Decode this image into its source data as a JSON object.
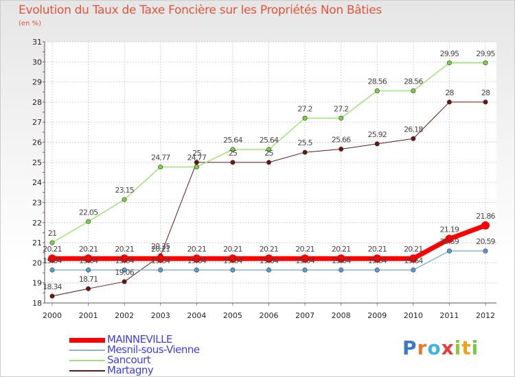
{
  "chart_data": {
    "type": "line",
    "title": "Evolution du Taux de Taxe Foncière sur les Propriétés Non Bâties",
    "unit_label": "(en %)",
    "x": [
      "2000",
      "2001",
      "2002",
      "2003",
      "2004",
      "2005",
      "2006",
      "2007",
      "2008",
      "2009",
      "2010",
      "2011",
      "2012"
    ],
    "ylim": [
      18,
      31
    ],
    "yticks": [
      18,
      19,
      20,
      21,
      22,
      23,
      24,
      25,
      26,
      27,
      28,
      29,
      30,
      31
    ],
    "grid": true,
    "legend_position": "bottom-left",
    "series": [
      {
        "name": "Martagny",
        "color": "#5a1a1a",
        "marker": "#6b1414",
        "width": 1,
        "values": [
          18.34,
          18.71,
          19.06,
          20.35,
          25,
          25,
          25,
          25.5,
          25.66,
          25.92,
          26.18,
          28,
          28
        ],
        "labels": [
          "18.34",
          "18.71",
          "19.06",
          "20.35",
          "25",
          "25",
          "25",
          "25.5",
          "25.66",
          "25.92",
          "26.18",
          "28",
          "28"
        ]
      },
      {
        "name": "Sancourt",
        "color": "#a3e07a",
        "marker": "#7ed040",
        "width": 1.5,
        "values": [
          21,
          22.05,
          23.15,
          24.77,
          24.77,
          25.64,
          25.64,
          27.2,
          27.2,
          28.56,
          28.56,
          29.95,
          29.95
        ],
        "labels": [
          "21",
          "22.05",
          "23.15",
          "24.77",
          "24.77",
          "25.64",
          "25.64",
          "27.2",
          "27.2",
          "28.56",
          "28.56",
          "29.95",
          "29.95"
        ]
      },
      {
        "name": "Mesnil-sous-Vienne",
        "color": "#8ab4d6",
        "marker": "#5a9bd0",
        "width": 1.5,
        "values": [
          19.64,
          19.64,
          19.64,
          19.64,
          19.64,
          19.64,
          19.64,
          19.64,
          19.64,
          19.64,
          19.64,
          20.59,
          20.59
        ],
        "labels": [
          "19.64",
          "19.64",
          "19.64",
          "19.64",
          "19.64",
          "19.64",
          "19.64",
          "19.64",
          "19.64",
          "19.64",
          "19.64",
          "20.59",
          "20.59"
        ]
      },
      {
        "name": "MAINNEVILLE",
        "color": "#ff0000",
        "marker": "#ff0000",
        "width": 7,
        "values": [
          20.21,
          20.21,
          20.21,
          20.21,
          20.21,
          20.21,
          20.21,
          20.21,
          20.21,
          20.21,
          20.21,
          21.19,
          21.86
        ],
        "labels": [
          "20.21",
          "20.21",
          "20.21",
          "20.21",
          "20.21",
          "20.21",
          "20.21",
          "20.21",
          "20.21",
          "20.21",
          "20.21",
          "21.19",
          "21.86"
        ]
      }
    ],
    "legend": [
      {
        "name": "MAINNEVILLE",
        "color": "#ff0000",
        "thickness": 7
      },
      {
        "name": "Mesnil-sous-Vienne",
        "color": "#8ab4d6",
        "thickness": 2
      },
      {
        "name": "Sancourt",
        "color": "#a3e07a",
        "thickness": 2
      },
      {
        "name": "Martagny",
        "color": "#5a1a1a",
        "thickness": 2
      }
    ]
  },
  "logo": {
    "text": "Proxiti",
    "letters": [
      {
        "ch": "P",
        "color": "#3c78c8"
      },
      {
        "ch": "r",
        "color": "#e8782a"
      },
      {
        "ch": "o",
        "color": "#3cb4e6"
      },
      {
        "ch": "x",
        "color": "#e83c3c"
      },
      {
        "ch": "i",
        "color": "#8cc83c"
      },
      {
        "ch": "t",
        "color": "#f0a01e"
      },
      {
        "ch": "i",
        "color": "#78c850"
      }
    ]
  }
}
